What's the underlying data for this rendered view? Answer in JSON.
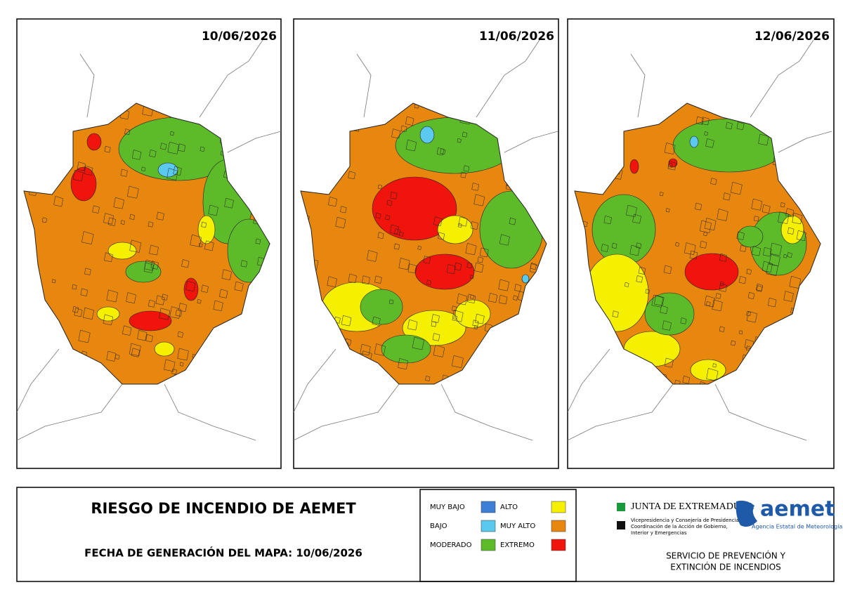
{
  "maps": [
    {
      "date": "10/06/2026"
    },
    {
      "date": "11/06/2026"
    },
    {
      "date": "12/06/2026"
    }
  ],
  "title": "RIESGO DE INCENDIO DE AEMET",
  "generation": "FECHA DE GENERACIÓN DEL MAPA: 10/06/2026",
  "legend": [
    {
      "label": "MUY BAJO",
      "color": "#3d7fd6"
    },
    {
      "label": "BAJO",
      "color": "#5bc8ef"
    },
    {
      "label": "MODERADO",
      "color": "#5dbb2a"
    },
    {
      "label": "ALTO",
      "color": "#f5f000"
    },
    {
      "label": "MUY ALTO",
      "color": "#e8870d"
    },
    {
      "label": "EXTREMO",
      "color": "#f0140c"
    }
  ],
  "logos": {
    "junta": "JUNTA DE EXTREMADURA",
    "junta_sub": [
      "Vicepresidencia y Consejería de Presidencia,",
      "Coordinación de la Acción de Gobierno,",
      "Interior y Emergencias"
    ],
    "aemet": "aemet",
    "aemet_sub": "Agencia Estatal de Meteorología"
  },
  "service": [
    "SERVICIO DE PREVENCIÓN Y",
    "EXTINCIÓN DE INCENDIOS"
  ]
}
